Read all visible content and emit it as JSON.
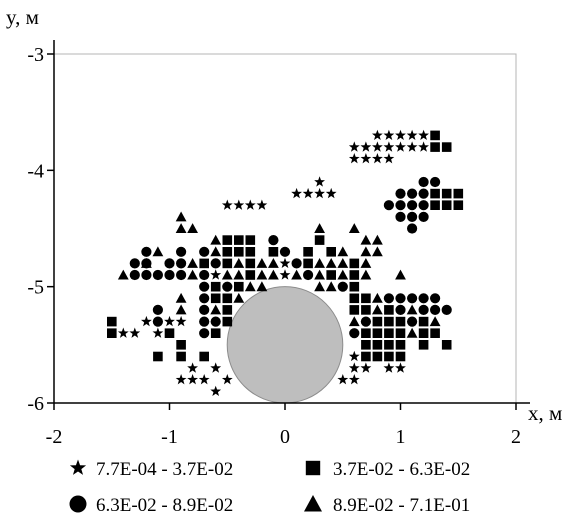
{
  "chart_data": {
    "type": "scatter",
    "xlabel": "x, м",
    "ylabel": "y, м",
    "xlim": [
      -2,
      2
    ],
    "ylim": [
      -6,
      -3
    ],
    "xticks": [
      "-2",
      "-1",
      "0",
      "1",
      "2"
    ],
    "yticks": [
      "-3",
      "-4",
      "-5",
      "-6"
    ],
    "grid": false,
    "legend_position": "bottom",
    "marker_color": "#000000",
    "circle_obstacle": {
      "cx": 0,
      "cy": -5.5,
      "r": 0.5,
      "color": "#bebebe"
    },
    "series": [
      {
        "name": "7.7E-04 - 3.7E-02",
        "marker": "star",
        "points": [
          [
            0.8,
            -3.7
          ],
          [
            0.9,
            -3.7
          ],
          [
            1.0,
            -3.7
          ],
          [
            1.1,
            -3.7
          ],
          [
            1.2,
            -3.7
          ],
          [
            0.6,
            -3.8
          ],
          [
            0.7,
            -3.8
          ],
          [
            0.8,
            -3.8
          ],
          [
            0.9,
            -3.8
          ],
          [
            1.0,
            -3.8
          ],
          [
            1.1,
            -3.8
          ],
          [
            1.2,
            -3.8
          ],
          [
            0.6,
            -3.9
          ],
          [
            0.7,
            -3.9
          ],
          [
            0.8,
            -3.9
          ],
          [
            0.9,
            -3.9
          ],
          [
            0.3,
            -4.1
          ],
          [
            0.1,
            -4.2
          ],
          [
            0.2,
            -4.2
          ],
          [
            0.3,
            -4.2
          ],
          [
            0.4,
            -4.2
          ],
          [
            -0.5,
            -4.3
          ],
          [
            -0.4,
            -4.3
          ],
          [
            -0.3,
            -4.3
          ],
          [
            -0.2,
            -4.3
          ],
          [
            0.0,
            -4.8
          ],
          [
            0.0,
            -4.9
          ],
          [
            -0.6,
            -4.9
          ],
          [
            -1.2,
            -5.3
          ],
          [
            -1.0,
            -5.3
          ],
          [
            -0.9,
            -5.3
          ],
          [
            -1.4,
            -5.4
          ],
          [
            -1.3,
            -5.4
          ],
          [
            -1.1,
            -5.4
          ],
          [
            0.6,
            -5.6
          ],
          [
            0.6,
            -5.7
          ],
          [
            0.7,
            -5.7
          ],
          [
            0.9,
            -5.7
          ],
          [
            1.0,
            -5.7
          ],
          [
            -0.8,
            -5.7
          ],
          [
            -0.6,
            -5.7
          ],
          [
            -0.9,
            -5.8
          ],
          [
            -0.8,
            -5.8
          ],
          [
            -0.7,
            -5.8
          ],
          [
            -0.5,
            -5.8
          ],
          [
            -0.6,
            -5.9
          ],
          [
            0.5,
            -5.8
          ],
          [
            0.6,
            -5.8
          ]
        ]
      },
      {
        "name": "3.7E-02 - 6.3E-02",
        "marker": "square",
        "points": [
          [
            1.3,
            -3.7
          ],
          [
            1.3,
            -3.8
          ],
          [
            1.4,
            -3.8
          ],
          [
            1.3,
            -4.2
          ],
          [
            1.4,
            -4.2
          ],
          [
            1.5,
            -4.2
          ],
          [
            1.3,
            -4.3
          ],
          [
            1.4,
            -4.3
          ],
          [
            1.5,
            -4.3
          ],
          [
            -0.5,
            -4.6
          ],
          [
            -0.4,
            -4.6
          ],
          [
            -0.3,
            -4.6
          ],
          [
            0.3,
            -4.6
          ],
          [
            -0.5,
            -4.7
          ],
          [
            -0.4,
            -4.7
          ],
          [
            -0.3,
            -4.7
          ],
          [
            -0.1,
            -4.7
          ],
          [
            0.2,
            -4.7
          ],
          [
            0.4,
            -4.7
          ],
          [
            -0.7,
            -4.8
          ],
          [
            -0.5,
            -4.8
          ],
          [
            -0.3,
            -4.8
          ],
          [
            0.2,
            -4.8
          ],
          [
            0.6,
            -4.8
          ],
          [
            -0.3,
            -4.9
          ],
          [
            0.4,
            -4.9
          ],
          [
            0.6,
            -4.9
          ],
          [
            -0.6,
            -5.0
          ],
          [
            -0.4,
            -5.0
          ],
          [
            0.6,
            -5.0
          ],
          [
            -0.6,
            -5.1
          ],
          [
            -0.5,
            -5.1
          ],
          [
            0.6,
            -5.1
          ],
          [
            0.7,
            -5.1
          ],
          [
            -0.5,
            -5.2
          ],
          [
            0.6,
            -5.2
          ],
          [
            0.7,
            -5.2
          ],
          [
            0.9,
            -5.2
          ],
          [
            -0.5,
            -5.3
          ],
          [
            0.8,
            -5.3
          ],
          [
            0.9,
            -5.3
          ],
          [
            1.0,
            -5.3
          ],
          [
            1.2,
            -5.3
          ],
          [
            -1.5,
            -5.3
          ],
          [
            -1.5,
            -5.4
          ],
          [
            -1.0,
            -5.4
          ],
          [
            -0.6,
            -5.4
          ],
          [
            0.7,
            -5.4
          ],
          [
            0.8,
            -5.4
          ],
          [
            0.9,
            -5.4
          ],
          [
            1.0,
            -5.4
          ],
          [
            1.2,
            -5.4
          ],
          [
            1.3,
            -5.4
          ],
          [
            -0.9,
            -5.5
          ],
          [
            0.7,
            -5.5
          ],
          [
            0.8,
            -5.5
          ],
          [
            0.9,
            -5.5
          ],
          [
            1.0,
            -5.5
          ],
          [
            1.2,
            -5.5
          ],
          [
            1.4,
            -5.5
          ],
          [
            -1.1,
            -5.6
          ],
          [
            -0.9,
            -5.6
          ],
          [
            -0.7,
            -5.6
          ],
          [
            0.7,
            -5.6
          ],
          [
            0.8,
            -5.6
          ],
          [
            0.9,
            -5.6
          ],
          [
            1.0,
            -5.6
          ]
        ]
      },
      {
        "name": "6.3E-02 - 8.9E-02",
        "marker": "circle",
        "points": [
          [
            1.2,
            -4.1
          ],
          [
            1.3,
            -4.1
          ],
          [
            1.0,
            -4.2
          ],
          [
            1.1,
            -4.2
          ],
          [
            1.2,
            -4.2
          ],
          [
            0.9,
            -4.3
          ],
          [
            1.0,
            -4.3
          ],
          [
            1.1,
            -4.3
          ],
          [
            1.2,
            -4.3
          ],
          [
            1.0,
            -4.4
          ],
          [
            1.1,
            -4.4
          ],
          [
            1.2,
            -4.4
          ],
          [
            1.1,
            -4.5
          ],
          [
            -0.1,
            -4.6
          ],
          [
            -1.2,
            -4.7
          ],
          [
            -0.9,
            -4.7
          ],
          [
            -0.7,
            -4.7
          ],
          [
            0.0,
            -4.7
          ],
          [
            -1.3,
            -4.8
          ],
          [
            -1.2,
            -4.8
          ],
          [
            -1.0,
            -4.8
          ],
          [
            -0.9,
            -4.8
          ],
          [
            -0.6,
            -4.8
          ],
          [
            0.1,
            -4.8
          ],
          [
            -1.3,
            -4.9
          ],
          [
            -1.2,
            -4.9
          ],
          [
            -1.1,
            -4.9
          ],
          [
            -1.0,
            -4.9
          ],
          [
            -0.9,
            -4.9
          ],
          [
            -0.7,
            -4.9
          ],
          [
            0.2,
            -4.9
          ],
          [
            -0.7,
            -5.0
          ],
          [
            -0.5,
            -5.0
          ],
          [
            0.5,
            -5.0
          ],
          [
            -0.7,
            -5.1
          ],
          [
            0.9,
            -5.1
          ],
          [
            1.0,
            -5.1
          ],
          [
            1.1,
            -5.1
          ],
          [
            1.2,
            -5.1
          ],
          [
            1.3,
            -5.1
          ],
          [
            -1.1,
            -5.2
          ],
          [
            -0.7,
            -5.2
          ],
          [
            1.0,
            -5.2
          ],
          [
            1.2,
            -5.2
          ],
          [
            1.3,
            -5.2
          ],
          [
            -1.1,
            -5.3
          ],
          [
            -0.7,
            -5.3
          ],
          [
            -0.6,
            -5.3
          ],
          [
            0.7,
            -5.3
          ],
          [
            1.1,
            -5.3
          ],
          [
            -0.7,
            -5.4
          ],
          [
            0.6,
            -5.4
          ],
          [
            1.4,
            -5.2
          ]
        ]
      },
      {
        "name": "8.9E-02 - 7.1E-01",
        "marker": "triangle",
        "points": [
          [
            -0.9,
            -4.4
          ],
          [
            -0.8,
            -4.5
          ],
          [
            -0.9,
            -4.5
          ],
          [
            0.6,
            -4.5
          ],
          [
            0.7,
            -4.6
          ],
          [
            0.8,
            -4.6
          ],
          [
            0.3,
            -4.5
          ],
          [
            -0.6,
            -4.6
          ],
          [
            -1.1,
            -4.7
          ],
          [
            -0.6,
            -4.7
          ],
          [
            0.5,
            -4.7
          ],
          [
            0.7,
            -4.7
          ],
          [
            0.8,
            -4.7
          ],
          [
            -1.2,
            -4.8
          ],
          [
            -0.8,
            -4.8
          ],
          [
            -0.4,
            -4.8
          ],
          [
            -0.2,
            -4.8
          ],
          [
            -0.1,
            -4.8
          ],
          [
            0.3,
            -4.8
          ],
          [
            0.4,
            -4.8
          ],
          [
            0.5,
            -4.8
          ],
          [
            0.7,
            -4.8
          ],
          [
            -1.4,
            -4.9
          ],
          [
            -0.8,
            -4.9
          ],
          [
            -0.5,
            -4.9
          ],
          [
            -0.4,
            -4.9
          ],
          [
            -0.2,
            -4.9
          ],
          [
            -0.1,
            -4.9
          ],
          [
            0.1,
            -4.9
          ],
          [
            0.3,
            -4.9
          ],
          [
            0.5,
            -4.9
          ],
          [
            0.7,
            -4.9
          ],
          [
            1.0,
            -4.9
          ],
          [
            -0.3,
            -5.0
          ],
          [
            -0.2,
            -5.0
          ],
          [
            0.3,
            -5.0
          ],
          [
            0.4,
            -5.0
          ],
          [
            -0.9,
            -5.1
          ],
          [
            -0.4,
            -5.1
          ],
          [
            0.8,
            -5.1
          ],
          [
            -0.9,
            -5.2
          ],
          [
            -0.6,
            -5.2
          ],
          [
            0.8,
            -5.2
          ],
          [
            1.1,
            -5.2
          ],
          [
            0.6,
            -5.3
          ],
          [
            1.3,
            -5.3
          ],
          [
            1.1,
            -5.4
          ]
        ]
      }
    ]
  }
}
